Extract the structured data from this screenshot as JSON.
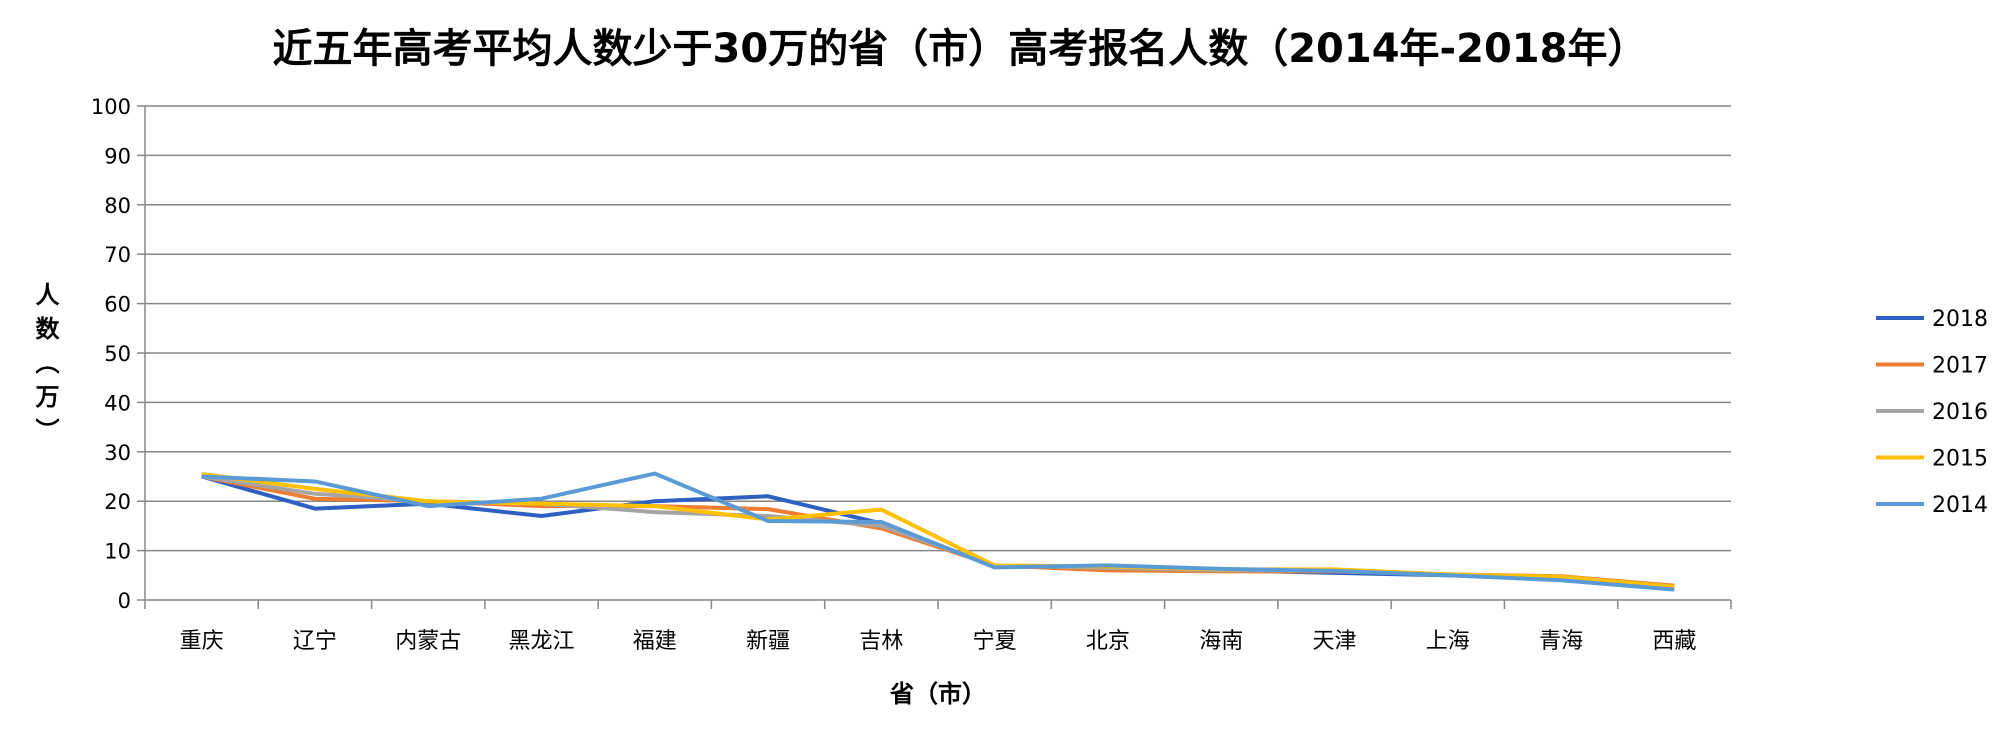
{
  "chart_data": {
    "type": "line",
    "title": "近五年高考平均人数少于30万的省（市）高考报名人数（2014年-2018年）",
    "xlabel": "省（市）",
    "ylabel": "人数（万）",
    "ylim": [
      0,
      100
    ],
    "yticks": [
      0,
      10,
      20,
      30,
      40,
      50,
      60,
      70,
      80,
      90,
      100
    ],
    "grid": true,
    "legend_position": "right",
    "categories": [
      "重庆",
      "辽宁",
      "内蒙古",
      "黑龙江",
      "福建",
      "新疆",
      "吉林",
      "宁夏",
      "北京",
      "海南",
      "天津",
      "上海",
      "青海",
      "西藏"
    ],
    "series": [
      {
        "name": "2018",
        "color": "#2f5fc0",
        "values": [
          25,
          18.5,
          19.5,
          17,
          20,
          21,
          15.5,
          6.8,
          6.5,
          6,
          5.5,
          5,
          4.5,
          2.5
        ]
      },
      {
        "name": "2017",
        "color": "#ed7d31",
        "values": [
          25,
          20.5,
          20,
          19,
          19,
          18.4,
          14.5,
          7,
          6,
          5.8,
          5.8,
          5.2,
          4.8,
          2.9
        ]
      },
      {
        "name": "2016",
        "color": "#a5a5a5",
        "values": [
          25,
          21.5,
          20,
          19.5,
          17.8,
          17,
          15,
          7,
          6.5,
          6,
          6,
          5,
          4.5,
          2.6
        ]
      },
      {
        "name": "2015",
        "color": "#ffc000",
        "values": [
          25.5,
          22.5,
          20,
          19.5,
          19,
          16.3,
          18.3,
          7,
          6.8,
          6.2,
          6.2,
          5.2,
          4.7,
          2.7
        ]
      },
      {
        "name": "2014",
        "color": "#5b9bd5",
        "values": [
          25,
          24,
          19,
          20.5,
          25.6,
          16,
          15.8,
          6.6,
          7,
          6.3,
          5.9,
          5,
          4,
          2.1
        ]
      }
    ]
  }
}
